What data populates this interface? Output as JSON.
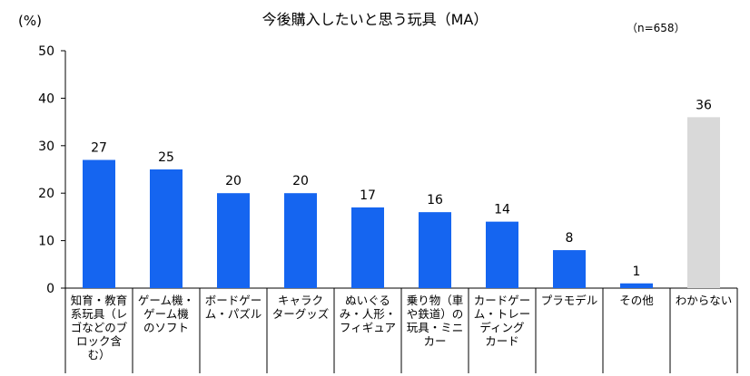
{
  "chart_data": {
    "type": "bar",
    "title": "今後購入したいと思う玩具（MA）",
    "ylabel": "(%)",
    "note": "（n=658）",
    "ylim": [
      0,
      50
    ],
    "yticks": [
      0,
      10,
      20,
      30,
      40,
      50
    ],
    "grid": false,
    "categories": [
      "知育・教育\n系玩具（レ\nゴなどのブ\nロック含\nむ）",
      "ゲーム機・\nゲーム機\nのソフト",
      "ボードゲー\nム・パズル",
      "キャラク\nターグッズ",
      "ぬいぐる\nみ・人形・\nフィギュア",
      "乗り物（車\nや鉄道）の\n玩具・ミニ\nカー",
      "カードゲー\nム・トレー\nディング\nカード",
      "プラモデル",
      "その他",
      "わからない"
    ],
    "values": [
      27,
      25,
      20,
      20,
      17,
      16,
      14,
      8,
      1,
      36
    ],
    "colors": {
      "primary": "#1565f0",
      "muted": "#d9d9d9",
      "axis": "#000000"
    },
    "muted_categories": [
      "わからない"
    ]
  }
}
